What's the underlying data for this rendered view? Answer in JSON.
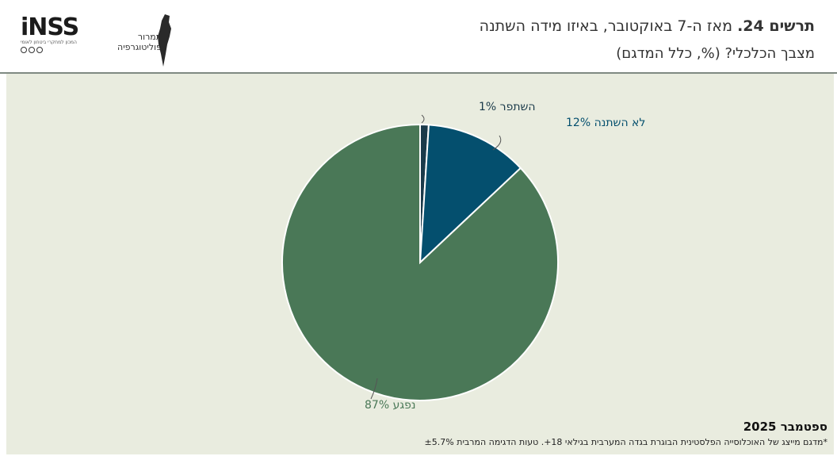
{
  "header": {
    "title_number": "תרשים 24.",
    "title_text": "מאז ה-7 באוקטובר, באיזו מידה השתנה",
    "subtitle": "מצבך הכלכלי? (%, כלל המדגם)"
  },
  "logos": {
    "inss_wordmark": "iNSS",
    "inss_tagline": "המכון למחקרי ביטחון לאומי",
    "tamrur_text": "תמרור פוליטוגרפיה"
  },
  "chart_data": {
    "type": "pie",
    "title": "מאז ה-7 באוקטובר, באיזו מידה השתנה מצבך הכלכלי? (%, כלל המדגם)",
    "slices": [
      {
        "label": "השתפר",
        "value": 1,
        "value_label": "1%",
        "color": "#1a3a4a"
      },
      {
        "label": "לא השתנה",
        "value": 12,
        "value_label": "12%",
        "color": "#044f6e"
      },
      {
        "label": "נפגע",
        "value": 87,
        "value_label": "87%",
        "color": "#4a7857"
      }
    ],
    "start_angle": "top",
    "direction": "clockwise"
  },
  "footer": {
    "date": "ספטמבר 2025",
    "note": "*מדגם מייצג של האוכלוסייה הפלסטינית הבוגרת בגדה המערבית בגילאי 18+. טעות הדגימה המרבית ±5.7%"
  },
  "colors": {
    "panel_background": "#e9ecdf",
    "label_positive": "#1a3a4a",
    "label_neutral": "#044f6e",
    "label_negative": "#4a7857"
  }
}
